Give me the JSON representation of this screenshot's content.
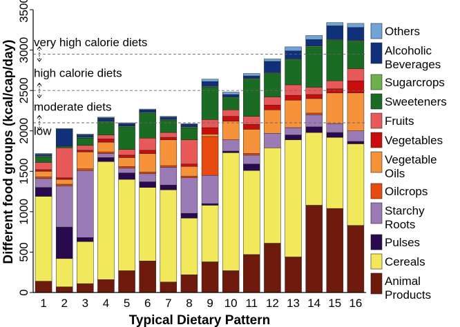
{
  "chart_data": {
    "type": "bar",
    "stacked": true,
    "xlabel": "Typical Dietary Pattern",
    "ylabel": "Different food groups (kcal/cap/day)",
    "ylim": [
      0,
      3500
    ],
    "yticks": [
      0,
      500,
      1000,
      1500,
      2000,
      2500,
      3000,
      3500
    ],
    "categories": [
      "1",
      "2",
      "3",
      "4",
      "5",
      "6",
      "7",
      "8",
      "9",
      "10",
      "11",
      "12",
      "13",
      "14",
      "15",
      "16"
    ],
    "series": [
      {
        "name": "Animal Products",
        "color": "#6e1a0d",
        "values": [
          140,
          70,
          110,
          160,
          270,
          390,
          130,
          220,
          380,
          270,
          470,
          610,
          440,
          1080,
          1040,
          830
        ]
      },
      {
        "name": "Cereals",
        "color": "#f2e85b",
        "values": [
          1050,
          350,
          520,
          1460,
          1130,
          910,
          1140,
          700,
          700,
          1460,
          1040,
          1180,
          1450,
          900,
          880,
          1010
        ]
      },
      {
        "name": "Pulses",
        "color": "#2a0a4e",
        "values": [
          110,
          390,
          50,
          50,
          80,
          70,
          60,
          60,
          20,
          20,
          80,
          0,
          60,
          70,
          60,
          30
        ]
      },
      {
        "name": "Starchy Roots",
        "color": "#9b7bb5",
        "values": [
          110,
          510,
          830,
          50,
          60,
          100,
          220,
          440,
          350,
          140,
          110,
          180,
          90,
          150,
          110,
          130
        ]
      },
      {
        "name": "Oilcrops",
        "color": "#e84b0f",
        "values": [
          20,
          20,
          20,
          20,
          20,
          20,
          20,
          20,
          480,
          0,
          20,
          0,
          0,
          20,
          0,
          0
        ]
      },
      {
        "name": "Vegetable Oils",
        "color": "#f5923a",
        "values": [
          70,
          60,
          210,
          120,
          110,
          230,
          320,
          120,
          30,
          230,
          300,
          290,
          340,
          180,
          380,
          470
        ]
      },
      {
        "name": "Vegetables",
        "color": "#c90d0d",
        "values": [
          20,
          20,
          20,
          40,
          30,
          40,
          30,
          30,
          80,
          60,
          60,
          60,
          60,
          50,
          50,
          150
        ]
      },
      {
        "name": "Fruits",
        "color": "#e85a5a",
        "values": [
          90,
          370,
          60,
          50,
          70,
          150,
          60,
          300,
          100,
          80,
          100,
          100,
          130,
          90,
          100,
          150
        ]
      },
      {
        "name": "Sweeteners",
        "color": "#1a6b24",
        "values": [
          70,
          20,
          90,
          160,
          280,
          310,
          150,
          150,
          400,
          150,
          460,
          290,
          310,
          500,
          500,
          340
        ]
      },
      {
        "name": "Sugarcrops",
        "color": "#6fb04c",
        "values": [
          10,
          0,
          10,
          10,
          10,
          10,
          10,
          10,
          10,
          10,
          10,
          10,
          10,
          10,
          10,
          10
        ]
      },
      {
        "name": "Alcoholic Beverages",
        "color": "#11307a",
        "values": [
          20,
          210,
          30,
          40,
          30,
          30,
          30,
          30,
          60,
          30,
          30,
          140,
          100,
          80,
          170,
          160
        ]
      },
      {
        "name": "Others",
        "color": "#6fa5d6",
        "values": [
          10,
          10,
          10,
          10,
          10,
          10,
          10,
          10,
          30,
          30,
          30,
          30,
          50,
          50,
          40,
          50
        ]
      }
    ],
    "threshold_lines": [
      {
        "value": 2100,
        "label": "low"
      },
      {
        "value": 2500,
        "label": "moderate diets"
      },
      {
        "value": 2950,
        "label": "high calorie diets"
      },
      {
        "value": 3500,
        "label": "very high calorie diets"
      }
    ],
    "legend_position": "right",
    "grid": false
  }
}
